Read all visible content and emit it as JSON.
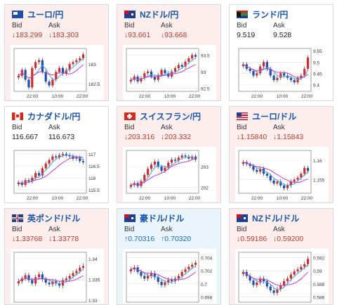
{
  "cards": [
    {
      "name": "eur-jpy",
      "title": "ユーロ/円",
      "flag": "eu-flag-icon",
      "trend": "down",
      "bid_label": "Bid",
      "ask_label": "Ask",
      "bid_arrow": "↓",
      "bid": "183.299",
      "ask_arrow": "↓",
      "ask": "183.303",
      "yticks": [
        "183",
        "182.5"
      ],
      "xticks": [
        "22:00",
        "10:00",
        "22:00"
      ],
      "chart_data": {
        "type": "line",
        "ylim": [
          182.3,
          183.4
        ],
        "closes": [
          182.7,
          182.85,
          182.6,
          182.4,
          182.9,
          183.05,
          183.1,
          182.8,
          182.55,
          182.45,
          182.6,
          182.8,
          182.9,
          182.75,
          182.85,
          183.0,
          183.05,
          183.1,
          183.15,
          183.25
        ]
      }
    },
    {
      "name": "nzd-jpy",
      "title": "NZドル/円",
      "flag": "nz-flag-icon",
      "trend": "down",
      "bid_label": "Bid",
      "ask_label": "Ask",
      "bid_arrow": "↓",
      "bid": "93.661",
      "ask_arrow": "↓",
      "ask": "93.668",
      "yticks": [
        "93.5",
        "93",
        "92.5"
      ],
      "xticks": [
        "22:00",
        "10:00",
        "22:00"
      ],
      "chart_data": {
        "type": "line",
        "ylim": [
          92.4,
          93.7
        ],
        "closes": [
          92.75,
          92.85,
          92.7,
          92.8,
          92.95,
          93.0,
          92.85,
          92.75,
          92.9,
          93.05,
          92.95,
          92.85,
          93.0,
          93.1,
          93.2,
          93.15,
          93.3,
          93.4,
          93.5,
          93.45
        ]
      }
    },
    {
      "name": "zar-jpy",
      "title": "ランド/円",
      "flag": "za-flag-icon",
      "trend": "plain",
      "bid_label": "Bid",
      "ask_label": "Ask",
      "bid_arrow": "",
      "bid": "9.519",
      "ask_arrow": "",
      "ask": "9.528",
      "yticks": [
        "9.55",
        "9.5",
        "9.45",
        "9.4"
      ],
      "xticks": [
        "22:00",
        "10:00",
        "22:00"
      ],
      "chart_data": {
        "type": "line",
        "ylim": [
          9.37,
          9.56
        ],
        "closes": [
          9.49,
          9.47,
          9.46,
          9.44,
          9.45,
          9.48,
          9.5,
          9.47,
          9.44,
          9.42,
          9.43,
          9.45,
          9.44,
          9.43,
          9.42,
          9.41,
          9.43,
          9.44,
          9.47,
          9.52
        ]
      }
    },
    {
      "name": "cad-jpy",
      "title": "カナダドル/円",
      "flag": "ca-flag-icon",
      "trend": "plain",
      "bid_label": "Bid",
      "ask_label": "Ask",
      "bid_arrow": "",
      "bid": "116.667",
      "ask_arrow": "",
      "ask": "116.673",
      "yticks": [
        "117",
        "116.5",
        "116",
        "115.5"
      ],
      "xticks": [
        "22:00",
        "10:00",
        "22:00"
      ],
      "chart_data": {
        "type": "line",
        "ylim": [
          115.35,
          117.15
        ],
        "closes": [
          115.8,
          115.7,
          115.9,
          115.85,
          116.0,
          116.2,
          116.1,
          116.4,
          116.6,
          116.75,
          116.9,
          116.85,
          116.95,
          117.0,
          116.95,
          116.9,
          116.8,
          116.85,
          116.7,
          116.65
        ]
      }
    },
    {
      "name": "chf-jpy",
      "title": "スイスフラン/円",
      "flag": "ch-flag-icon",
      "trend": "down",
      "bid_label": "Bid",
      "ask_label": "Ask",
      "bid_arrow": "↓",
      "bid": "203.316",
      "ask_arrow": "↓",
      "ask": "203.332",
      "yticks": [
        "203",
        "202"
      ],
      "xticks": [
        "22:00",
        "10:00",
        "22:00"
      ],
      "chart_data": {
        "type": "line",
        "ylim": [
          201.7,
          203.8
        ],
        "closes": [
          202.1,
          202.2,
          202.05,
          202.3,
          202.6,
          202.9,
          203.1,
          203.25,
          203.0,
          202.8,
          202.95,
          203.2,
          203.35,
          203.3,
          203.45,
          203.55,
          203.5,
          203.4,
          203.5,
          203.35
        ]
      }
    },
    {
      "name": "eur-usd",
      "title": "ユーロ/ドル",
      "flag": "us-flag-icon",
      "trend": "down",
      "bid_label": "Bid",
      "ask_label": "Ask",
      "bid_arrow": "↓",
      "bid": "1.15840",
      "ask_arrow": "↓",
      "ask": "1.15843",
      "yticks": [
        "1.16",
        "1.155"
      ],
      "xticks": [
        "22:00",
        "10:00",
        "22:00"
      ],
      "chart_data": {
        "type": "line",
        "ylim": [
          1.1515,
          1.1625
        ],
        "closes": [
          1.1595,
          1.159,
          1.1585,
          1.1575,
          1.157,
          1.1578,
          1.1565,
          1.156,
          1.1548,
          1.154,
          1.1545,
          1.1535,
          1.1528,
          1.1535,
          1.1545,
          1.155,
          1.1555,
          1.1565,
          1.158,
          1.1572
        ]
      }
    },
    {
      "name": "gbp-usd",
      "title": "英ポンド/ドル",
      "flag": "uk-flag-icon",
      "trend": "down",
      "bid_label": "Bid",
      "ask_label": "Ask",
      "bid_arrow": "↓",
      "bid": "1.33768",
      "ask_arrow": "↓",
      "ask": "1.33778",
      "yticks": [
        "1.34",
        "1.335",
        "1.33"
      ],
      "xticks": [],
      "chart_data": {
        "type": "line",
        "ylim": [
          1.3295,
          1.3415
        ],
        "closes": [
          1.3345,
          1.3352,
          1.336,
          1.3348,
          1.334,
          1.3355,
          1.3362,
          1.335,
          1.3342,
          1.3338,
          1.3345,
          1.334,
          1.3335,
          1.3348,
          1.3352,
          1.3358,
          1.3365,
          1.337,
          1.3378,
          1.3382
        ]
      }
    },
    {
      "name": "aud-usd",
      "title": "豪ドル/ドル",
      "flag": "au-flag-icon",
      "trend": "up",
      "bid_label": "Bid",
      "ask_label": "Ask",
      "bid_arrow": "↑",
      "bid": "0.70316",
      "ask_arrow": "↑",
      "ask": "0.70320",
      "yticks": [
        "0.704",
        "0.702",
        "0.7",
        "0.698"
      ],
      "xticks": [],
      "chart_data": {
        "type": "line",
        "ylim": [
          0.6972,
          0.7048
        ],
        "closes": [
          0.7022,
          0.7025,
          0.7018,
          0.7012,
          0.7008,
          0.7012,
          0.7016,
          0.701,
          0.7003,
          0.6998,
          0.7002,
          0.7006,
          0.7004,
          0.7008,
          0.7012,
          0.7018,
          0.7022,
          0.7026,
          0.7029,
          0.7032
        ]
      }
    },
    {
      "name": "nzd-usd",
      "title": "NZドル/ドル",
      "flag": "nz-flag-icon",
      "trend": "down",
      "bid_label": "Bid",
      "ask_label": "Ask",
      "bid_arrow": "↓",
      "bid": "0.59186",
      "ask_arrow": "↓",
      "ask": "0.59200",
      "yticks": [
        "0.592",
        "0.59",
        "0.588",
        "0.586"
      ],
      "xticks": [],
      "chart_data": {
        "type": "line",
        "ylim": [
          0.5852,
          0.5928
        ],
        "closes": [
          0.5898,
          0.5892,
          0.5885,
          0.5878,
          0.5882,
          0.5888,
          0.5884,
          0.5876,
          0.587,
          0.5866,
          0.5872,
          0.5878,
          0.5884,
          0.5888,
          0.5894,
          0.5899,
          0.5902,
          0.5906,
          0.591,
          0.5918
        ]
      }
    }
  ]
}
